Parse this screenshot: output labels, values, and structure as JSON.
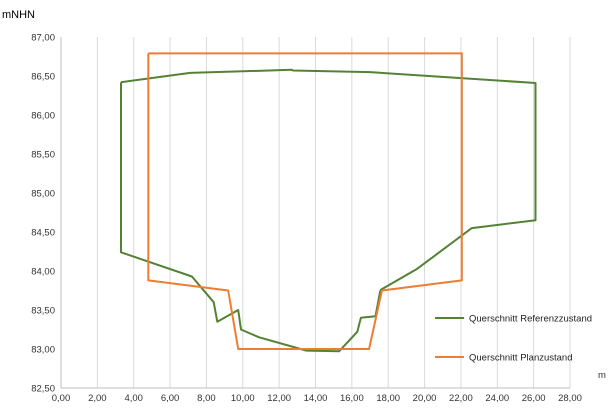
{
  "chart_data": {
    "type": "line",
    "title": "",
    "ylabel": "mNHN",
    "xlabel": "m",
    "xlim": [
      0,
      28
    ],
    "ylim": [
      82.5,
      87.0
    ],
    "x_ticks": [
      "0,00",
      "2,00",
      "4,00",
      "6,00",
      "8,00",
      "10,00",
      "12,00",
      "14,00",
      "16,00",
      "18,00",
      "20,00",
      "22,00",
      "24,00",
      "26,00",
      "28,00"
    ],
    "y_ticks": [
      "82,50",
      "83,00",
      "83,50",
      "84,00",
      "84,50",
      "85,00",
      "85,50",
      "86,00",
      "86,50",
      "87,00"
    ],
    "grid": "vertical",
    "legend_position": "right",
    "series": [
      {
        "name": "Querschnitt Referenzzustand",
        "color": "#548235",
        "points": [
          [
            3.3,
            86.42
          ],
          [
            7.1,
            86.54
          ],
          [
            12.7,
            86.58
          ],
          [
            12.75,
            86.57
          ],
          [
            17.0,
            86.55
          ],
          [
            26.1,
            86.41
          ],
          [
            26.1,
            84.65
          ],
          [
            22.6,
            84.55
          ],
          [
            19.6,
            84.03
          ],
          [
            17.6,
            83.76
          ],
          [
            17.55,
            83.73
          ],
          [
            17.3,
            83.42
          ],
          [
            16.5,
            83.4
          ],
          [
            16.3,
            83.22
          ],
          [
            15.3,
            82.97
          ],
          [
            13.5,
            82.98
          ],
          [
            10.9,
            83.15
          ],
          [
            9.9,
            83.25
          ],
          [
            9.75,
            83.5
          ],
          [
            8.6,
            83.35
          ],
          [
            8.4,
            83.6
          ],
          [
            7.2,
            83.93
          ],
          [
            3.3,
            84.24
          ],
          [
            3.3,
            86.42
          ]
        ]
      },
      {
        "name": "Querschnitt Planzustand",
        "color": "#ED7D31",
        "points": [
          [
            4.8,
            86.79
          ],
          [
            22.05,
            86.79
          ],
          [
            22.05,
            83.88
          ],
          [
            17.65,
            83.75
          ],
          [
            16.95,
            83.0
          ],
          [
            9.75,
            83.0
          ],
          [
            9.2,
            83.75
          ],
          [
            4.8,
            83.88
          ],
          [
            4.8,
            86.79
          ]
        ]
      }
    ]
  }
}
